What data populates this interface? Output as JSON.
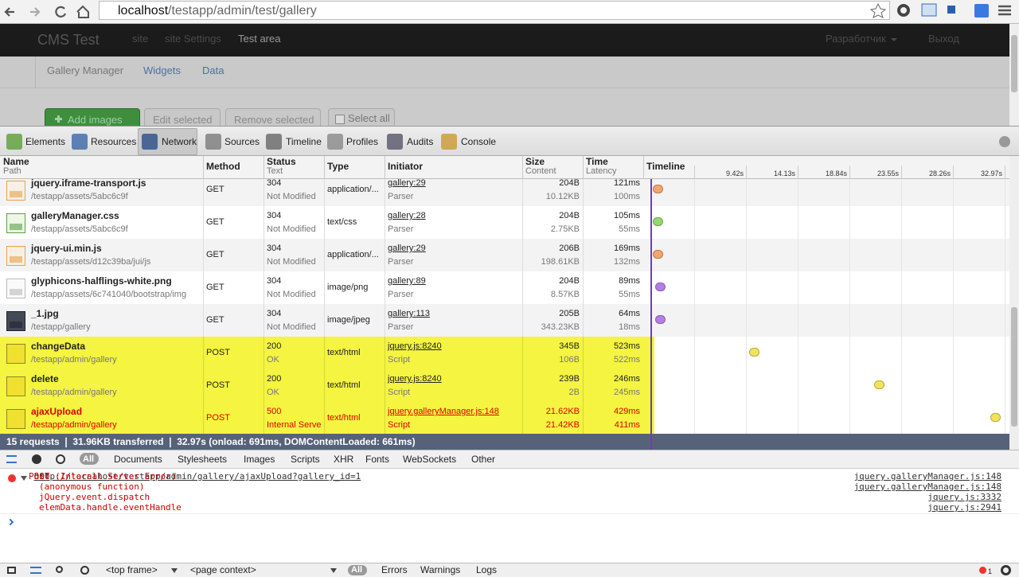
{
  "browser": {
    "url_host": "localhost",
    "url_path": "/testapp/admin/test/gallery"
  },
  "app": {
    "brand": "CMS Test",
    "nav": [
      "site",
      "site Settings",
      "Test area"
    ],
    "user": "Разработчик",
    "logout": "Выход",
    "subnav": [
      "Gallery Manager",
      "Widgets",
      "Data"
    ],
    "buttons": [
      "Add images",
      "Edit selected",
      "Remove selected"
    ],
    "select_all": "Select all"
  },
  "devtools": {
    "tabs": [
      "Elements",
      "Resources",
      "Network",
      "Sources",
      "Timeline",
      "Profiles",
      "Audits",
      "Console"
    ]
  },
  "network": {
    "columns": [
      {
        "title": "Name",
        "sub": "Path"
      },
      {
        "title": "Method"
      },
      {
        "title": "Status",
        "sub": "Text"
      },
      {
        "title": "Type"
      },
      {
        "title": "Initiator"
      },
      {
        "title": "Size",
        "sub": "Content"
      },
      {
        "title": "Time",
        "sub": "Latency"
      },
      {
        "title": "Timeline"
      }
    ],
    "timeline_ticks": [
      "9.42s",
      "14.13s",
      "18.84s",
      "23.55s",
      "28.26s",
      "32.97s"
    ],
    "rows": [
      {
        "name": "jquery.iframe-transport.js",
        "path": "/testapp/assets/5abc6c9f",
        "method": "GET",
        "status": 304,
        "status_text": "Not Modified",
        "type": "application/...",
        "initiator": "gallery:29",
        "initiator_type": "Parser",
        "size": "204B",
        "content": "10.12KB",
        "time": "121ms",
        "latency": "100ms"
      },
      {
        "name": "galleryManager.css",
        "path": "/testapp/assets/5abc6c9f",
        "method": "GET",
        "status": 304,
        "status_text": "Not Modified",
        "type": "text/css",
        "initiator": "gallery:28",
        "initiator_type": "Parser",
        "size": "204B",
        "content": "2.75KB",
        "time": "105ms",
        "latency": "55ms"
      },
      {
        "name": "jquery-ui.min.js",
        "path": "/testapp/assets/d12c39ba/jui/js",
        "method": "GET",
        "status": 304,
        "status_text": "Not Modified",
        "type": "application/...",
        "initiator": "gallery:29",
        "initiator_type": "Parser",
        "size": "206B",
        "content": "198.61KB",
        "time": "169ms",
        "latency": "132ms"
      },
      {
        "name": "glyphicons-halflings-white.png",
        "path": "/testapp/assets/6c741040/bootstrap/img",
        "method": "GET",
        "status": 304,
        "status_text": "Not Modified",
        "type": "image/png",
        "initiator": "gallery:89",
        "initiator_type": "Parser",
        "size": "204B",
        "content": "8.57KB",
        "time": "89ms",
        "latency": "55ms"
      },
      {
        "name": "_1.jpg",
        "path": "/testapp/gallery",
        "method": "GET",
        "status": 304,
        "status_text": "Not Modified",
        "type": "image/jpeg",
        "initiator": "gallery:113",
        "initiator_type": "Parser",
        "size": "205B",
        "content": "343.23KB",
        "time": "64ms",
        "latency": "18ms"
      },
      {
        "name": "changeData",
        "path": "/testapp/admin/gallery",
        "method": "POST",
        "status": 200,
        "status_text": "OK",
        "type": "text/html",
        "initiator": "jquery.js:8240",
        "initiator_type": "Script",
        "size": "345B",
        "content": "106B",
        "time": "523ms",
        "latency": "522ms"
      },
      {
        "name": "delete",
        "path": "/testapp/admin/gallery",
        "method": "POST",
        "status": 200,
        "status_text": "OK",
        "type": "text/html",
        "initiator": "jquery.js:8240",
        "initiator_type": "Script",
        "size": "239B",
        "content": "2B",
        "time": "246ms",
        "latency": "245ms"
      },
      {
        "name": "ajaxUpload",
        "path": "/testapp/admin/gallery",
        "method": "POST",
        "status": 500,
        "status_text": "Internal Serve",
        "type": "text/html",
        "initiator": "jquery.galleryManager.js:148",
        "initiator_type": "Script",
        "size": "21.62KB",
        "content": "21.42KB",
        "time": "429ms",
        "latency": "411ms"
      }
    ],
    "summary": "15 requests ❘ 31.96KB transferred ❘ 32.97s (onload: 691ms, DOMContentLoaded: 661ms)",
    "filters": [
      "All",
      "Documents",
      "Stylesheets",
      "Images",
      "Scripts",
      "XHR",
      "Fonts",
      "WebSockets",
      "Other"
    ]
  },
  "console": {
    "method": "POST",
    "url": "http://localhost/testapp/admin/gallery/ajaxUpload?gallery_id=1",
    "message": "500 (Internal Server Error)",
    "source": "jquery.galleryManager.js:148",
    "stack": [
      {
        "text": "(anonymous function)",
        "source": "jquery.galleryManager.js:148"
      },
      {
        "text": "jQuery.event.dispatch",
        "source": "jquery.js:3332"
      },
      {
        "text": "elemData.handle.eventHandle",
        "source": "jquery.js:2941"
      }
    ]
  },
  "bottom_bar": {
    "frame": "<top frame>",
    "context": "<page context>",
    "levels": [
      "All",
      "Errors",
      "Warnings",
      "Logs"
    ],
    "error_count": 1
  }
}
